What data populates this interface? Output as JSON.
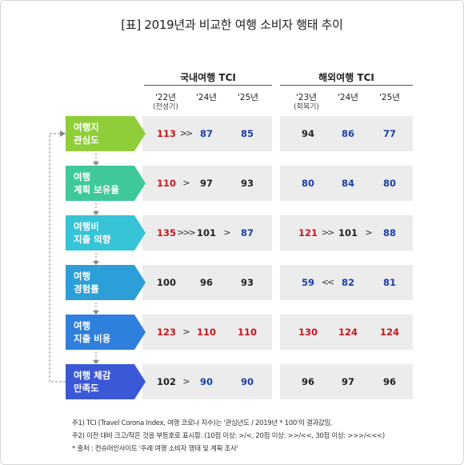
{
  "title": "[표] 2019년과 비교한 여행 소비자 행태 추이",
  "groups": [
    {
      "name": "국내여행 TCI",
      "columns": [
        {
          "year": "'22년",
          "note": "(전성기)"
        },
        {
          "year": "'24년",
          "note": ""
        },
        {
          "year": "'25년",
          "note": ""
        }
      ]
    },
    {
      "name": "해외여행 TCI",
      "columns": [
        {
          "year": "'23년",
          "note": "(회복기)"
        },
        {
          "year": "'24년",
          "note": ""
        },
        {
          "year": "'25년",
          "note": ""
        }
      ]
    }
  ],
  "chart_data": {
    "type": "table",
    "title": "[표] 2019년과 비교한 여행 소비자 행태 추이",
    "rows": [
      {
        "label": [
          "여행지",
          "관심도"
        ],
        "color": "#8fce3a",
        "domestic": [
          113,
          87,
          85
        ],
        "domestic_colors": [
          "red",
          "blue",
          "blue"
        ],
        "domestic_arrows": [
          ">>",
          ""
        ],
        "overseas": [
          94,
          86,
          77
        ],
        "overseas_colors": [
          "black",
          "blue",
          "blue"
        ],
        "overseas_arrows": [
          "",
          ""
        ]
      },
      {
        "label": [
          "여행",
          "계획 보유율"
        ],
        "color": "#3fc99a",
        "domestic": [
          110,
          97,
          93
        ],
        "domestic_colors": [
          "red",
          "black",
          "black"
        ],
        "domestic_arrows": [
          ">",
          ""
        ],
        "overseas": [
          80,
          84,
          80
        ],
        "overseas_colors": [
          "blue",
          "blue",
          "blue"
        ],
        "overseas_arrows": [
          "",
          ""
        ]
      },
      {
        "label": [
          "여행비",
          "지출 의향"
        ],
        "color": "#36c4d6",
        "domestic": [
          135,
          101,
          87
        ],
        "domestic_colors": [
          "red",
          "black",
          "blue"
        ],
        "domestic_arrows": [
          ">>>",
          ">"
        ],
        "overseas": [
          121,
          101,
          88
        ],
        "overseas_colors": [
          "red",
          "black",
          "blue"
        ],
        "overseas_arrows": [
          ">>",
          ">"
        ]
      },
      {
        "label": [
          "여행",
          "경험률"
        ],
        "color": "#2c9fd8",
        "domestic": [
          100,
          96,
          93
        ],
        "domestic_colors": [
          "black",
          "black",
          "black"
        ],
        "domestic_arrows": [
          "",
          ""
        ],
        "overseas": [
          59,
          82,
          81
        ],
        "overseas_colors": [
          "blue",
          "blue",
          "blue"
        ],
        "overseas_arrows": [
          "<<",
          ""
        ]
      },
      {
        "label": [
          "여행",
          "지출 비용"
        ],
        "color": "#2f7fdc",
        "domestic": [
          123,
          110,
          110
        ],
        "domestic_colors": [
          "red",
          "red",
          "red"
        ],
        "domestic_arrows": [
          ">",
          ""
        ],
        "overseas": [
          130,
          124,
          124
        ],
        "overseas_colors": [
          "red",
          "red",
          "red"
        ],
        "overseas_arrows": [
          "",
          ""
        ]
      },
      {
        "label": [
          "여행 체감",
          "만족도"
        ],
        "color": "#3b59d6",
        "domestic": [
          102,
          90,
          90
        ],
        "domestic_colors": [
          "black",
          "blue",
          "blue"
        ],
        "domestic_arrows": [
          ">",
          ""
        ],
        "overseas": [
          96,
          97,
          96
        ],
        "overseas_colors": [
          "black",
          "black",
          "black"
        ],
        "overseas_arrows": [
          "",
          ""
        ]
      }
    ]
  },
  "notes": [
    "주1) TCI (Travel Corona Index, 여행 코로나 지수)는 '관심년도 / 2019년 * 100'의 결과값임.",
    "주2) 이전 대비 크고/작은 것을 부등호로 표시함. (10점 이상: >/<, 20점 이상: >>/<<, 30점 이상: >>>/<<<)",
    "* 출처 : 컨슈머인사이트 '주례 여행 소비자 행태 및 계획 조사'"
  ],
  "colors": {
    "red": "#c8161d",
    "blue": "#1b3fa8",
    "black": "#222222"
  }
}
